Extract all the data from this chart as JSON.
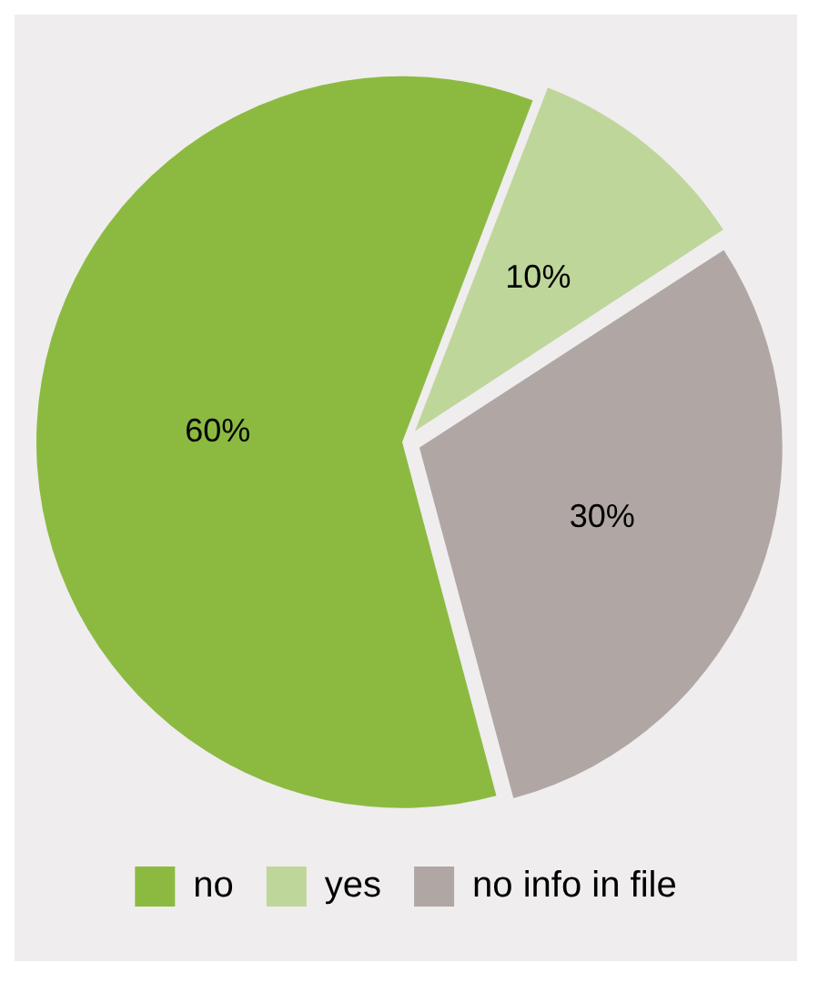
{
  "chart_data": {
    "type": "pie",
    "categories": [
      "no",
      "yes",
      "no info in file"
    ],
    "values": [
      60,
      10,
      30
    ],
    "colors": [
      "#8cba41",
      "#bfd69a",
      "#b0a7a4"
    ],
    "value_labels": [
      "60%",
      "10%",
      "30%"
    ],
    "legend": "bottom"
  }
}
